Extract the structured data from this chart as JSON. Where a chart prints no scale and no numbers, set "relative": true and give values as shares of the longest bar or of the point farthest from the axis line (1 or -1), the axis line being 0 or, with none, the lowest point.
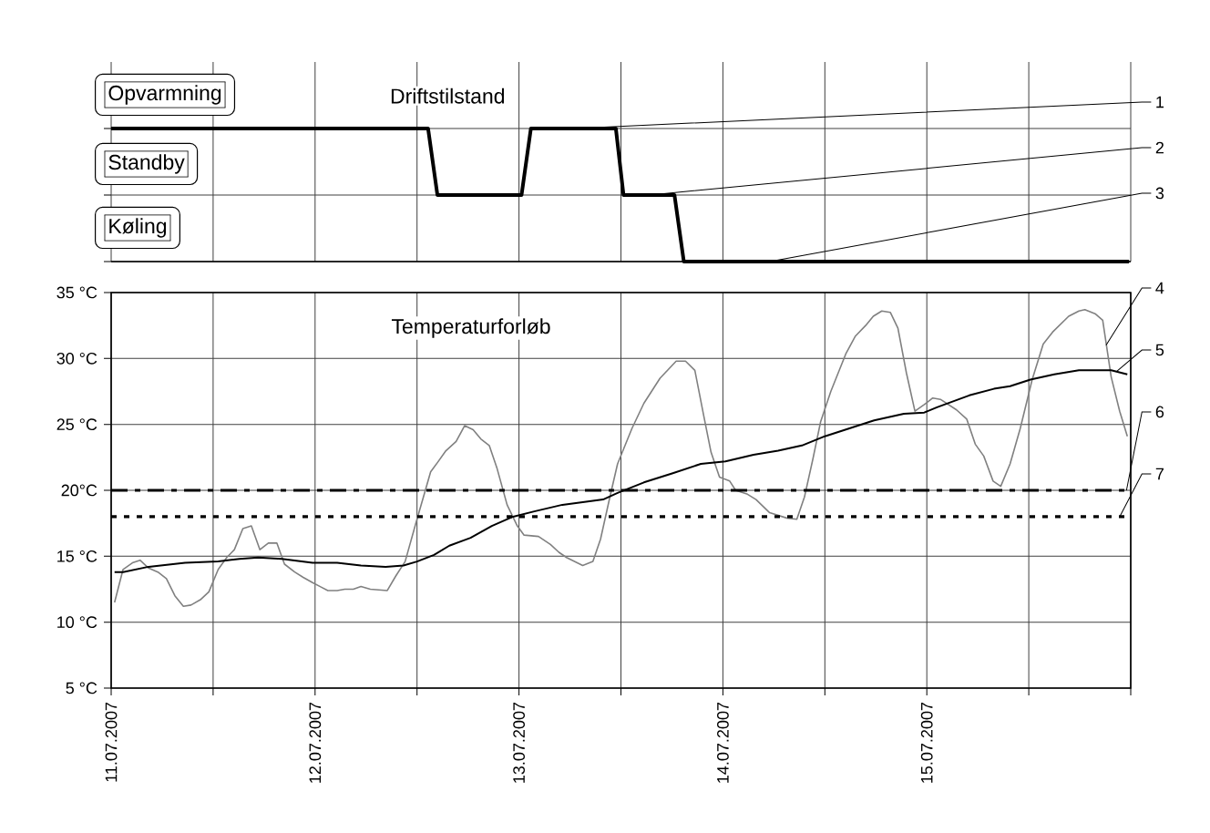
{
  "chart_data": [
    {
      "type": "line",
      "title": "Driftstilstand",
      "relative": true,
      "xlim": [
        "2007-07-11T00:00",
        "2007-07-16T00:00"
      ],
      "xticks": [
        "2007-07-11T00:00",
        "2007-07-11T12:00",
        "2007-07-12T00:00",
        "2007-07-12T12:00",
        "2007-07-13T00:00",
        "2007-07-13T12:00",
        "2007-07-14T00:00",
        "2007-07-14T12:00",
        "2007-07-15T00:00",
        "2007-07-15T12:00",
        "2007-07-16T00:00"
      ],
      "grid": true,
      "tick_labels": false,
      "series": [
        {
          "color": "#000000",
          "x": [
            "2007-07-11T00:00",
            "2007-07-12T13:18",
            "2007-07-12T14:24",
            "2007-07-13T00:18",
            "2007-07-13T01:24",
            "2007-07-13T11:24",
            "2007-07-13T12:18",
            "2007-07-13T18:18",
            "2007-07-13T19:24",
            "2007-07-15T23:48"
          ],
          "values": [
            1,
            1,
            0.5,
            0.5,
            1,
            1,
            0.5,
            0.5,
            0,
            0
          ]
        }
      ],
      "annotations": [
        "Opvarmning",
        "Standby",
        "Køling",
        {
          "text": "1",
          "x": "2007-07-13T06:36",
          "y": 1
        },
        {
          "text": "2",
          "x": "2007-07-13T15:24",
          "y": 0.5
        },
        {
          "text": "3",
          "x": "2007-07-14T05:30",
          "y": 0
        }
      ]
    },
    {
      "type": "line",
      "title": "Temperaturforløb",
      "xlim": [
        "2007-07-11T00:00",
        "2007-07-16T00:00"
      ],
      "xticks": [
        {
          "value": "2007-07-11T00:00",
          "label": "11.07.2007"
        },
        {
          "value": "2007-07-11T12:00",
          "label": null
        },
        {
          "value": "2007-07-12T00:00",
          "label": "12.07.2007"
        },
        {
          "value": "2007-07-12T12:00",
          "label": null
        },
        {
          "value": "2007-07-13T00:00",
          "label": "13.07.2007"
        },
        {
          "value": "2007-07-13T12:00",
          "label": null
        },
        {
          "value": "2007-07-14T00:00",
          "label": "14.07.2007"
        },
        {
          "value": "2007-07-14T12:00",
          "label": null
        },
        {
          "value": "2007-07-15T00:00",
          "label": "15.07.2007"
        },
        {
          "value": "2007-07-15T12:00",
          "label": null
        },
        {
          "value": "2007-07-16T00:00",
          "label": null
        }
      ],
      "ylim": [
        5,
        35
      ],
      "yticks": [
        {
          "value": 5,
          "label": "5 °C"
        },
        {
          "value": 10,
          "label": "10 °C"
        },
        {
          "value": 15,
          "label": "15 °C"
        },
        {
          "value": 20,
          "label": "20°C"
        },
        {
          "value": 25,
          "label": "25 °C"
        },
        {
          "value": 30,
          "label": "30 °C"
        },
        {
          "value": 35,
          "label": "35 °C"
        }
      ],
      "grid": true,
      "series": [
        {
          "color": "#808080",
          "x": [
            "2007-07-11T00:24",
            "2007-07-11T01:24",
            "2007-07-11T02:30",
            "2007-07-11T03:24",
            "2007-07-11T04:24",
            "2007-07-11T05:30",
            "2007-07-11T06:30",
            "2007-07-11T07:30",
            "2007-07-11T08:30",
            "2007-07-11T09:24",
            "2007-07-11T10:30",
            "2007-07-11T11:30",
            "2007-07-11T12:36",
            "2007-07-11T13:36",
            "2007-07-11T14:30",
            "2007-07-11T15:30",
            "2007-07-11T16:30",
            "2007-07-11T17:30",
            "2007-07-11T18:30",
            "2007-07-11T19:30",
            "2007-07-11T20:24",
            "2007-07-11T21:36",
            "2007-07-11T22:36",
            "2007-07-11T23:42",
            "2007-07-12T00:36",
            "2007-07-12T01:30",
            "2007-07-12T02:36",
            "2007-07-12T03:30",
            "2007-07-12T04:30",
            "2007-07-12T05:24",
            "2007-07-12T06:30",
            "2007-07-12T08:30",
            "2007-07-12T09:30",
            "2007-07-12T10:36",
            "2007-07-12T11:54",
            "2007-07-12T12:48",
            "2007-07-12T13:36",
            "2007-07-12T14:24",
            "2007-07-12T15:24",
            "2007-07-12T16:36",
            "2007-07-12T17:36",
            "2007-07-12T18:36",
            "2007-07-12T19:30",
            "2007-07-12T20:30",
            "2007-07-12T21:24",
            "2007-07-12T22:36",
            "2007-07-12T23:48",
            "2007-07-13T00:36",
            "2007-07-13T02:18",
            "2007-07-13T03:42",
            "2007-07-13T04:42",
            "2007-07-13T05:36",
            "2007-07-13T07:30",
            "2007-07-13T08:42",
            "2007-07-13T09:36",
            "2007-07-13T10:42",
            "2007-07-13T11:36",
            "2007-07-13T13:18",
            "2007-07-13T14:42",
            "2007-07-13T16:36",
            "2007-07-13T18:30",
            "2007-07-13T19:36",
            "2007-07-13T20:42",
            "2007-07-13T21:42",
            "2007-07-13T22:36",
            "2007-07-13T23:36",
            "2007-07-14T00:48",
            "2007-07-14T01:30",
            "2007-07-14T02:54",
            "2007-07-14T03:54",
            "2007-07-14T05:30",
            "2007-07-14T07:30",
            "2007-07-14T08:42",
            "2007-07-14T09:36",
            "2007-07-14T10:36",
            "2007-07-14T11:30",
            "2007-07-14T12:42",
            "2007-07-14T14:30",
            "2007-07-14T15:36",
            "2007-07-14T16:48",
            "2007-07-14T17:42",
            "2007-07-14T18:42",
            "2007-07-14T19:42",
            "2007-07-14T20:36",
            "2007-07-14T21:36",
            "2007-07-14T22:36",
            "2007-07-14T23:42",
            "2007-07-15T00:42",
            "2007-07-15T01:36",
            "2007-07-15T03:30",
            "2007-07-15T04:42",
            "2007-07-15T05:42",
            "2007-07-15T06:42",
            "2007-07-15T07:48",
            "2007-07-15T08:42",
            "2007-07-15T09:48",
            "2007-07-15T11:00",
            "2007-07-15T12:24",
            "2007-07-15T13:42",
            "2007-07-15T14:48",
            "2007-07-15T16:42",
            "2007-07-15T17:54",
            "2007-07-15T18:36",
            "2007-07-15T19:48",
            "2007-07-15T20:42",
            "2007-07-15T21:42",
            "2007-07-15T22:42",
            "2007-07-15T23:36"
          ],
          "values": [
            11.5,
            14.0,
            14.5,
            14.7,
            14.1,
            13.8,
            13.3,
            12.0,
            11.2,
            11.3,
            11.7,
            12.3,
            14.0,
            14.9,
            15.5,
            17.1,
            17.3,
            15.5,
            16.0,
            16.0,
            14.4,
            13.8,
            13.4,
            13.0,
            12.7,
            12.4,
            12.4,
            12.5,
            12.5,
            12.7,
            12.5,
            12.4,
            13.5,
            14.6,
            17.6,
            19.6,
            21.4,
            22.1,
            23.0,
            23.7,
            24.9,
            24.6,
            23.9,
            23.4,
            21.7,
            18.9,
            17.3,
            16.6,
            16.5,
            15.9,
            15.3,
            14.9,
            14.3,
            14.6,
            16.3,
            19.5,
            22.0,
            24.7,
            26.6,
            28.5,
            29.8,
            29.8,
            29.1,
            25.8,
            22.9,
            21.0,
            20.7,
            20.0,
            19.7,
            19.3,
            18.3,
            17.9,
            17.8,
            19.5,
            22.4,
            25.2,
            27.5,
            30.4,
            31.7,
            32.5,
            33.2,
            33.6,
            33.5,
            32.3,
            28.9,
            26.0,
            26.5,
            27.0,
            26.9,
            26.1,
            25.4,
            23.5,
            22.6,
            20.7,
            20.3,
            22.0,
            24.7,
            28.4,
            31.1,
            32.0,
            33.2,
            33.6,
            33.7,
            33.4,
            32.9,
            28.6,
            26.0,
            24.1
          ]
        },
        {
          "color": "#000000",
          "x": [
            "2007-07-11T00:24",
            "2007-07-11T01:24",
            "2007-07-11T04:24",
            "2007-07-11T08:42",
            "2007-07-11T12:36",
            "2007-07-11T15:06",
            "2007-07-11T17:18",
            "2007-07-11T20:06",
            "2007-07-11T23:42",
            "2007-07-12T02:36",
            "2007-07-12T05:24",
            "2007-07-12T08:18",
            "2007-07-12T10:24",
            "2007-07-12T12:00",
            "2007-07-12T14:00",
            "2007-07-12T15:48",
            "2007-07-12T18:18",
            "2007-07-12T20:48",
            "2007-07-12T23:18",
            "2007-07-13T01:48",
            "2007-07-13T05:06",
            "2007-07-13T09:54",
            "2007-07-13T11:36",
            "2007-07-13T14:42",
            "2007-07-13T18:06",
            "2007-07-13T21:24",
            "2007-07-14T00:18",
            "2007-07-14T03:36",
            "2007-07-14T06:30",
            "2007-07-14T09:18",
            "2007-07-14T12:00",
            "2007-07-14T14:54",
            "2007-07-14T17:48",
            "2007-07-14T21:18",
            "2007-07-14T23:42",
            "2007-07-15T01:12",
            "2007-07-15T05:00",
            "2007-07-15T07:54",
            "2007-07-15T09:48",
            "2007-07-15T12:12",
            "2007-07-15T15:00",
            "2007-07-15T17:54",
            "2007-07-15T19:48",
            "2007-07-15T21:42",
            "2007-07-15T23:36"
          ],
          "values": [
            13.8,
            13.8,
            14.2,
            14.5,
            14.6,
            14.8,
            14.9,
            14.8,
            14.5,
            14.5,
            14.3,
            14.2,
            14.3,
            14.6,
            15.1,
            15.8,
            16.4,
            17.3,
            18.0,
            18.4,
            18.9,
            19.3,
            19.8,
            20.6,
            21.3,
            22.0,
            22.2,
            22.7,
            23.0,
            23.4,
            24.1,
            24.7,
            25.3,
            25.8,
            25.9,
            26.3,
            27.2,
            27.7,
            27.9,
            28.4,
            28.8,
            29.1,
            29.1,
            29.1,
            28.8
          ]
        }
      ],
      "ref_lines": [
        {
          "axis": "y",
          "value": 20,
          "color": "#000000",
          "line_style": "dashdot"
        },
        {
          "axis": "y",
          "value": 18,
          "color": "#000000",
          "line_style": "dotted"
        }
      ],
      "annotations": [
        {
          "text": "4",
          "x": "2007-07-15T21:06",
          "y": 31
        },
        {
          "text": "5",
          "x": "2007-07-15T22:18",
          "y": 29
        },
        {
          "text": "6",
          "x": "2007-07-15T23:30",
          "y": 20
        },
        {
          "text": "7",
          "x": "2007-07-15T22:42",
          "y": 18
        }
      ]
    }
  ]
}
